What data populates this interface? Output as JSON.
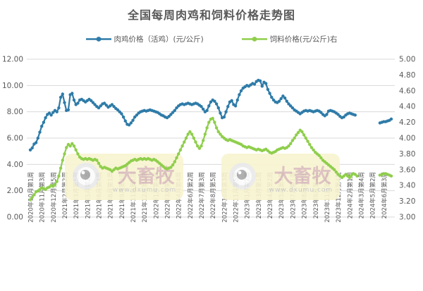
{
  "title": "全国每周肉鸡和饲料价格走势图",
  "legend": [
    {
      "label": "肉鸡价格（活鸡）(元/公斤)",
      "color": "#2E7BA8"
    },
    {
      "label": "饲料价格(元/公斤)右",
      "color": "#8FCE4C"
    }
  ],
  "watermark": {
    "brand": "大畜牧",
    "url": "www.dxumu.com"
  },
  "colors": {
    "chicken_line": "#2E7BA8",
    "feed_line": "#8FCE4C",
    "grid": "#D9D9D9",
    "axis_text": "#595959",
    "watermark_bg": "#F8F4D0",
    "watermark_brand": "#DBBDBD",
    "watermark_url": "#C9C9C9"
  },
  "chart_data": {
    "type": "line",
    "title": "全国每周肉鸡和饲料价格走势图",
    "grid": true,
    "legend_position": "top",
    "x_label_every": 6,
    "x_labels": [
      "2020年10月第1周",
      "2020年11月第3周",
      "2020年12月第5周",
      "2021年2月第2周",
      "2021年3月第5周",
      "2021年5月第2周",
      "2021年6月第4周",
      "2021年8月第1周",
      "2021年9月第3周",
      "2021年11月第1周",
      "2021年12月第3周",
      "2022年1月第4周",
      "2022年3月第3周",
      "2022年4月第4周",
      "2022年6月第2周",
      "2022年7月第3周",
      "2022年8月第5周",
      "2022年10月第3周",
      "2022年11月第5周",
      "2023年1月第2周",
      "2023年3月第1周",
      "2023年4月第2周",
      "2023年5月第4周",
      "2023年7月第1周",
      "2023年8月第3周",
      "2023年9月第4周",
      "2023年11月第3周",
      "2023年12月第4周",
      "2024年2月第1周",
      "2024年3月第4周",
      "2024年5月第2周",
      "2024年6月第3周"
    ],
    "axes": {
      "left": {
        "min": 0,
        "max": 12,
        "ticks": [
          "12.00",
          "10.00",
          "8.00",
          "6.00",
          "4.00",
          "2.00",
          "0.00"
        ]
      },
      "right": {
        "min": 3,
        "max": 5,
        "ticks": [
          "5.00",
          "4.80",
          "4.60",
          "4.40",
          "4.20",
          "4.00",
          "3.80",
          "3.60",
          "3.40",
          "3.20",
          "3.00"
        ]
      }
    },
    "series": [
      {
        "name": "肉鸡价格（活鸡）(元/公斤)",
        "axis": "left",
        "color": "#2E7BA8",
        "values": [
          5.1,
          5.25,
          5.55,
          5.65,
          6.0,
          6.45,
          6.9,
          7.2,
          7.55,
          7.8,
          7.9,
          7.75,
          7.95,
          8.1,
          8.0,
          8.3,
          9.1,
          9.35,
          8.7,
          8.1,
          8.15,
          9.3,
          9.4,
          8.9,
          8.55,
          8.65,
          8.9,
          8.95,
          8.85,
          8.75,
          8.85,
          8.95,
          8.85,
          8.7,
          8.55,
          8.4,
          8.3,
          8.45,
          8.6,
          8.65,
          8.5,
          8.35,
          8.45,
          8.55,
          8.4,
          8.25,
          8.15,
          8.0,
          7.85,
          7.6,
          7.3,
          7.05,
          7.0,
          7.15,
          7.35,
          7.6,
          7.75,
          7.9,
          8.0,
          8.05,
          8.1,
          8.05,
          8.1,
          8.15,
          8.1,
          8.05,
          8.0,
          7.95,
          7.85,
          7.75,
          7.7,
          7.6,
          7.55,
          7.65,
          7.8,
          7.95,
          8.1,
          8.3,
          8.45,
          8.55,
          8.6,
          8.55,
          8.6,
          8.65,
          8.6,
          8.55,
          8.6,
          8.65,
          8.6,
          8.5,
          8.4,
          8.2,
          8.0,
          8.1,
          8.45,
          8.75,
          8.9,
          8.8,
          8.6,
          8.3,
          7.9,
          7.55,
          7.6,
          8.0,
          8.4,
          8.75,
          8.85,
          8.55,
          8.45,
          8.9,
          9.3,
          9.6,
          9.8,
          9.9,
          10.0,
          9.95,
          10.05,
          10.15,
          10.1,
          10.3,
          10.4,
          10.35,
          9.95,
          10.25,
          10.15,
          9.7,
          9.4,
          9.1,
          8.9,
          8.75,
          8.7,
          8.8,
          9.0,
          9.2,
          9.05,
          8.8,
          8.6,
          8.45,
          8.3,
          8.15,
          8.05,
          7.95,
          7.85,
          7.95,
          8.05,
          8.1,
          8.05,
          8.1,
          8.05,
          8.0,
          8.05,
          8.1,
          8.05,
          7.95,
          7.8,
          7.7,
          7.8,
          8.05,
          8.1,
          8.05,
          8.0,
          7.9,
          7.8,
          7.65,
          7.55,
          7.6,
          7.75,
          7.85,
          7.9,
          7.85,
          7.8,
          7.75,
          null,
          null,
          null,
          null,
          null,
          null,
          null,
          null,
          null,
          null,
          null,
          null,
          7.15,
          7.2,
          7.25,
          7.25,
          7.3,
          7.35,
          7.45
        ]
      },
      {
        "name": "饲料价格(元/公斤)右",
        "axis": "right",
        "color": "#8FCE4C",
        "values": [
          3.22,
          3.25,
          3.28,
          3.32,
          3.33,
          3.35,
          3.37,
          3.36,
          3.35,
          3.37,
          3.38,
          3.4,
          3.39,
          3.41,
          3.45,
          3.52,
          3.62,
          3.72,
          3.8,
          3.88,
          3.92,
          3.9,
          3.93,
          3.9,
          3.85,
          3.8,
          3.76,
          3.74,
          3.73,
          3.74,
          3.73,
          3.74,
          3.73,
          3.72,
          3.73,
          3.72,
          3.68,
          3.64,
          3.62,
          3.63,
          3.62,
          3.61,
          3.6,
          3.58,
          3.6,
          3.62,
          3.61,
          3.62,
          3.63,
          3.64,
          3.65,
          3.67,
          3.69,
          3.71,
          3.72,
          3.73,
          3.72,
          3.73,
          3.74,
          3.73,
          3.74,
          3.73,
          3.74,
          3.73,
          3.72,
          3.73,
          3.72,
          3.7,
          3.68,
          3.66,
          3.64,
          3.62,
          3.61,
          3.62,
          3.63,
          3.66,
          3.7,
          3.75,
          3.8,
          3.85,
          3.9,
          3.95,
          4.0,
          4.05,
          4.08,
          4.05,
          4.0,
          3.95,
          3.9,
          3.87,
          3.9,
          3.97,
          4.05,
          4.13,
          4.2,
          4.24,
          4.25,
          4.2,
          4.13,
          4.08,
          4.05,
          4.02,
          4.0,
          3.98,
          3.97,
          3.98,
          3.97,
          3.96,
          3.95,
          3.94,
          3.93,
          3.92,
          3.9,
          3.89,
          3.88,
          3.89,
          3.88,
          3.87,
          3.86,
          3.85,
          3.86,
          3.85,
          3.84,
          3.85,
          3.86,
          3.84,
          3.82,
          3.81,
          3.82,
          3.83,
          3.85,
          3.86,
          3.87,
          3.88,
          3.87,
          3.88,
          3.9,
          3.93,
          3.97,
          4.0,
          4.04,
          4.07,
          4.1,
          4.08,
          4.04,
          4.0,
          3.96,
          3.92,
          3.88,
          3.85,
          3.82,
          3.8,
          3.78,
          3.75,
          3.72,
          3.7,
          3.68,
          3.66,
          3.64,
          3.62,
          3.6,
          3.57,
          3.54,
          3.52,
          3.5,
          3.52,
          3.54,
          3.52,
          3.5,
          3.53,
          3.55,
          3.54,
          3.52,
          null,
          null,
          null,
          null,
          null,
          null,
          null,
          null,
          null,
          null,
          null,
          3.53,
          3.54,
          3.55,
          3.55,
          3.54,
          3.53,
          3.52
        ]
      }
    ]
  }
}
